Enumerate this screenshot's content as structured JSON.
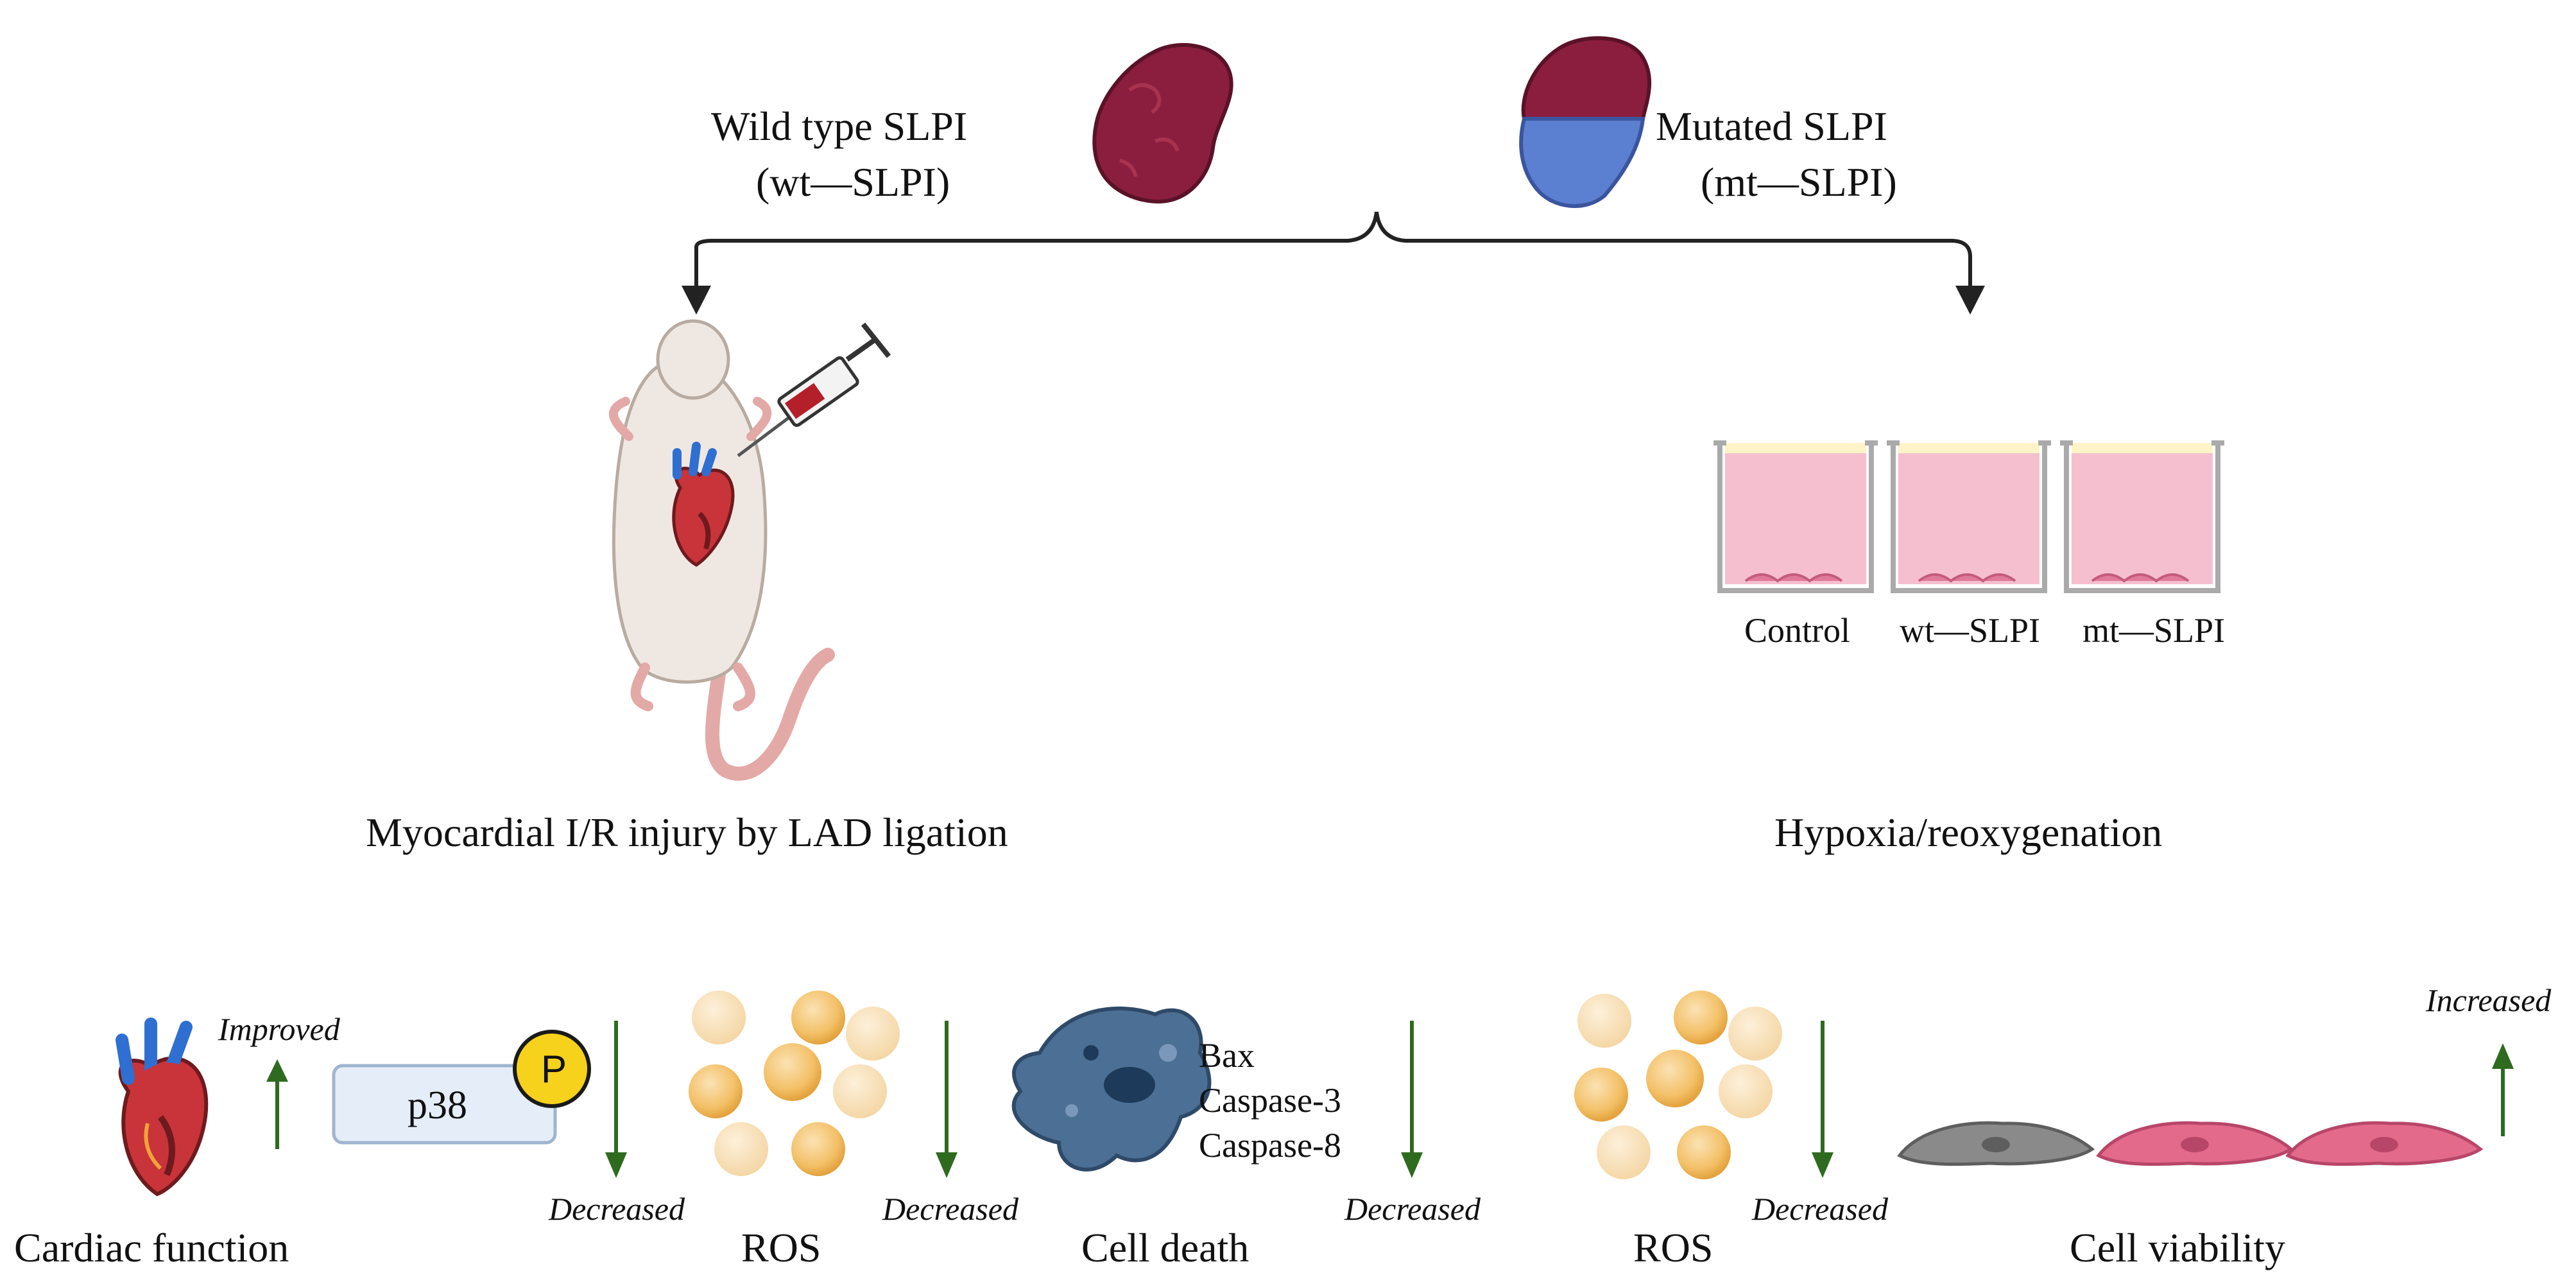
{
  "top": {
    "wt_label_line1": "Wild type SLPI",
    "wt_label_line2": "(wt—SLPI)",
    "mt_label_line1": "Mutated SLPI",
    "mt_label_line2": "(mt—SLPI)"
  },
  "left_panel": {
    "caption": "Myocardial I/R injury by LAD ligation"
  },
  "right_panel": {
    "caption": "Hypoxia/reoxygenation",
    "wells": [
      "Control",
      "wt—SLPI",
      "mt—SLPI"
    ]
  },
  "results": {
    "cardiac_function": {
      "label": "Cardiac function",
      "effect": "Improved"
    },
    "p38": {
      "label": "p38",
      "badge": "P",
      "effect": "Decreased"
    },
    "ros_left": {
      "label": "ROS",
      "effect": "Decreased"
    },
    "cell_death": {
      "label": "Cell death",
      "markers": [
        "Bax",
        "Caspase-3",
        "Caspase-8"
      ],
      "effect": "Decreased"
    },
    "ros_right": {
      "label": "ROS",
      "effect": "Decreased"
    },
    "cell_viability": {
      "label": "Cell viability",
      "effect": "Increased"
    }
  },
  "colors": {
    "protein_red": "#8b1e3f",
    "protein_blue": "#5b7fd1",
    "arrow_green": "#2e6b1f",
    "media_pink": "#f5bfd0",
    "badge_yellow": "#f6d21c"
  }
}
